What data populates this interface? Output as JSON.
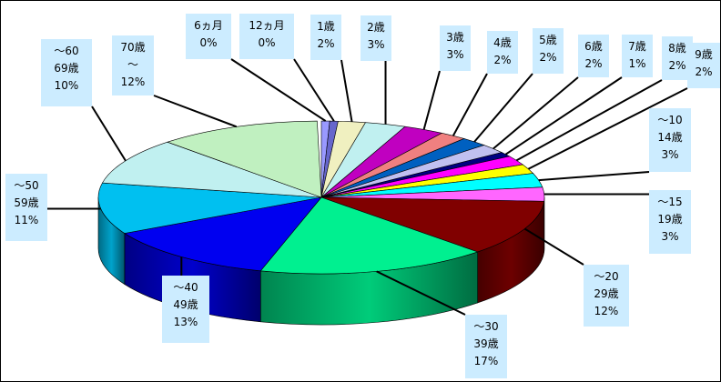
{
  "chart_data": {
    "type": "pie",
    "style": "3d",
    "legend": "none",
    "slices": [
      {
        "label": [
          "6ヵ月"
        ],
        "pct": "0%",
        "value": 0,
        "color": "#9999FF"
      },
      {
        "label": [
          "12ヵ月"
        ],
        "pct": "0%",
        "value": 0,
        "color": "#6666CC"
      },
      {
        "label": [
          "1歳"
        ],
        "pct": "2%",
        "value": 2,
        "color": "#F0F0C0"
      },
      {
        "label": [
          "2歳"
        ],
        "pct": "3%",
        "value": 3,
        "color": "#C0F0F0"
      },
      {
        "label": [
          "3歳"
        ],
        "pct": "3%",
        "value": 3,
        "color": "#C000C0"
      },
      {
        "label": [
          "4歳"
        ],
        "pct": "2%",
        "value": 2,
        "color": "#F08080"
      },
      {
        "label": [
          "5歳"
        ],
        "pct": "2%",
        "value": 2,
        "color": "#0060C0"
      },
      {
        "label": [
          "6歳"
        ],
        "pct": "2%",
        "value": 2,
        "color": "#C0C0F0"
      },
      {
        "label": [
          "7歳"
        ],
        "pct": "1%",
        "value": 1,
        "color": "#000080"
      },
      {
        "label": [
          "8歳"
        ],
        "pct": "2%",
        "value": 2,
        "color": "#FF00FF"
      },
      {
        "label": [
          "9歳"
        ],
        "pct": "2%",
        "value": 2,
        "color": "#FFFF00"
      },
      {
        "label": [
          "～10",
          "14歳"
        ],
        "pct": "3%",
        "value": 3,
        "color": "#00FFFF"
      },
      {
        "label": [
          "～15",
          "19歳"
        ],
        "pct": "3%",
        "value": 3,
        "color": "#FF66FF"
      },
      {
        "label": [
          "～20",
          "29歳"
        ],
        "pct": "12%",
        "value": 12,
        "color": "#800000"
      },
      {
        "label": [
          "～30",
          "39歳"
        ],
        "pct": "17%",
        "value": 17,
        "color": "#00F090"
      },
      {
        "label": [
          "～40",
          "49歳"
        ],
        "pct": "13%",
        "value": 13,
        "color": "#0000F0"
      },
      {
        "label": [
          "～50",
          "59歳"
        ],
        "pct": "11%",
        "value": 11,
        "color": "#00C0F0"
      },
      {
        "label": [
          "～60",
          "69歳"
        ],
        "pct": "10%",
        "value": 10,
        "color": "#C0F0F0"
      },
      {
        "label": [
          "70歳",
          "～"
        ],
        "pct": "12%",
        "value": 12,
        "color": "#C0F0C0"
      }
    ]
  }
}
